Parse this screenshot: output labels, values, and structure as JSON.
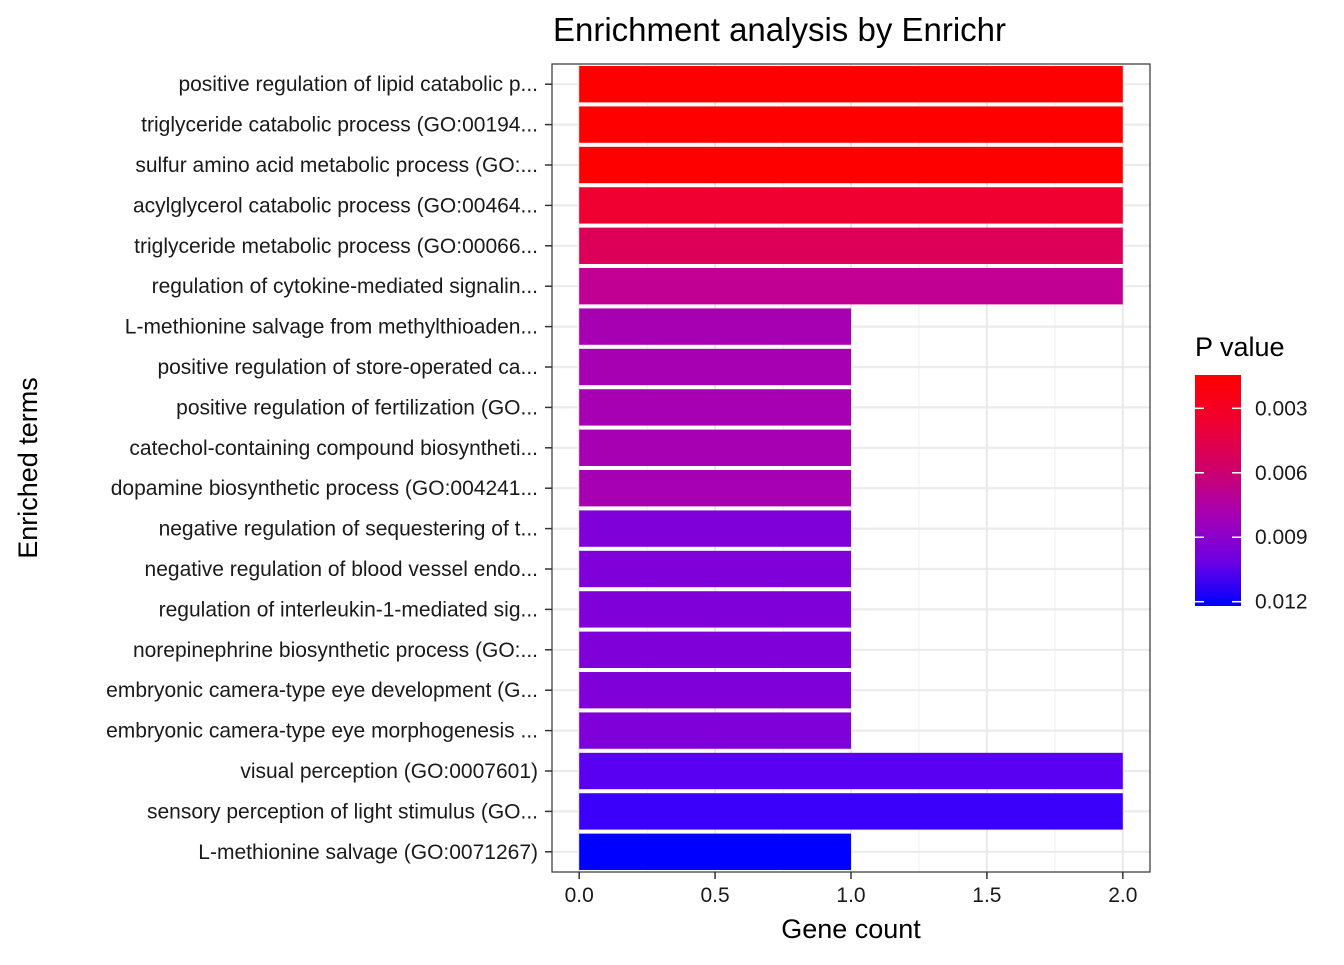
{
  "chart_data": {
    "type": "bar",
    "orientation": "horizontal",
    "title": "Enrichment analysis by Enrichr",
    "xlabel": "Gene count",
    "ylabel": "Enriched terms",
    "xlim": [
      -0.1,
      2.1
    ],
    "xticks": [
      "0.0",
      "0.5",
      "1.0",
      "1.5",
      "2.0"
    ],
    "xtick_values": [
      0,
      0.5,
      1,
      1.5,
      2
    ],
    "grid": true,
    "legend": {
      "title": "P value",
      "position": "right",
      "ticks": [
        "0.003",
        "0.006",
        "0.009",
        "0.012"
      ],
      "tick_values": [
        0.003,
        0.006,
        0.009,
        0.012
      ],
      "range": [
        0.00145,
        0.0122
      ],
      "low_color": "#ff0000",
      "high_color": "#0000ff"
    },
    "categories": [
      "positive regulation of lipid catabolic p...",
      "triglyceride catabolic process (GO:00194...",
      "sulfur amino acid metabolic process (GO:...",
      "acylglycerol catabolic process (GO:00464...",
      "triglyceride metabolic process (GO:00066...",
      "regulation of cytokine-mediated signalin...",
      "L-methionine salvage from methylthioaden...",
      "positive regulation of store-operated ca...",
      "positive regulation of fertilization (GO...",
      "catechol-containing compound biosyntheti...",
      "dopamine biosynthetic process (GO:004241...",
      "negative regulation of sequestering of t...",
      "negative regulation of blood vessel endo...",
      "regulation of interleukin-1-mediated sig...",
      "norepinephrine biosynthetic process (GO:...",
      "embryonic camera-type eye development (G...",
      "embryonic camera-type eye morphogenesis ...",
      "visual perception (GO:0007601)",
      "sensory perception of light stimulus (GO...",
      "L-methionine salvage (GO:0071267)"
    ],
    "values": [
      2,
      2,
      2,
      2,
      2,
      2,
      1,
      1,
      1,
      1,
      1,
      1,
      1,
      1,
      1,
      1,
      1,
      2,
      2,
      1
    ],
    "p_values": [
      0.0015,
      0.0016,
      0.0017,
      0.0035,
      0.0048,
      0.0073,
      0.0084,
      0.0084,
      0.0084,
      0.0084,
      0.0084,
      0.0096,
      0.0096,
      0.0096,
      0.0096,
      0.0096,
      0.0096,
      0.0106,
      0.0112,
      0.0122
    ],
    "colors": [
      "#ff0000",
      "#ff0000",
      "#ff0000",
      "#f00030",
      "#dd0058",
      "#c10093",
      "#a700b2",
      "#a700b2",
      "#a700b2",
      "#a700b2",
      "#a700b2",
      "#7f00d8",
      "#7f00d8",
      "#7f00d8",
      "#7f00d8",
      "#7f00d8",
      "#7f00d8",
      "#5a00f2",
      "#3a00fa",
      "#0000ff"
    ]
  }
}
